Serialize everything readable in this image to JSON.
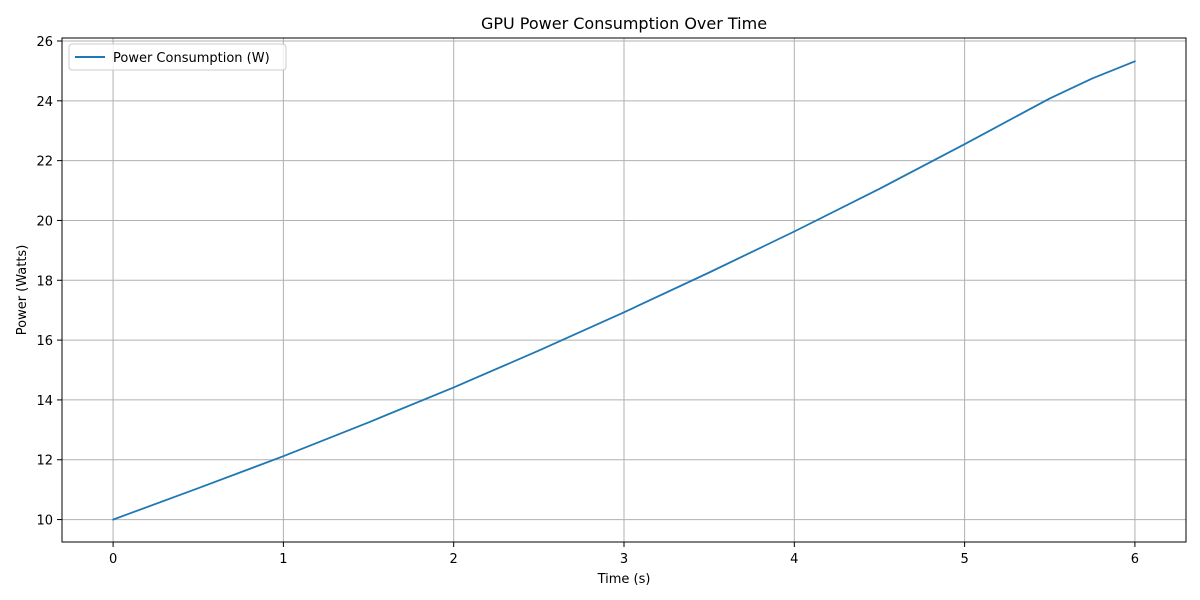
{
  "chart_data": {
    "type": "line",
    "title": "GPU Power Consumption Over Time",
    "xlabel": "Time (s)",
    "ylabel": "Power (Watts)",
    "xlim": [
      -0.3,
      6.3
    ],
    "ylim": [
      9.25,
      26.1
    ],
    "x_ticks": [
      0,
      1,
      2,
      3,
      4,
      5,
      6
    ],
    "y_ticks": [
      10,
      12,
      14,
      16,
      18,
      20,
      22,
      24,
      26
    ],
    "grid": true,
    "legend_position": "top-left",
    "series": [
      {
        "name": "Power Consumption (W)",
        "color": "#1f77b4",
        "x": [
          0,
          0.5,
          1,
          1.5,
          2,
          2.5,
          3,
          3.5,
          4,
          4.5,
          5,
          5.5,
          5.75,
          6
        ],
        "y": [
          10.0,
          11.05,
          12.12,
          13.25,
          14.42,
          15.65,
          16.93,
          18.26,
          19.63,
          21.06,
          22.55,
          24.08,
          24.75,
          25.32
        ]
      }
    ]
  }
}
